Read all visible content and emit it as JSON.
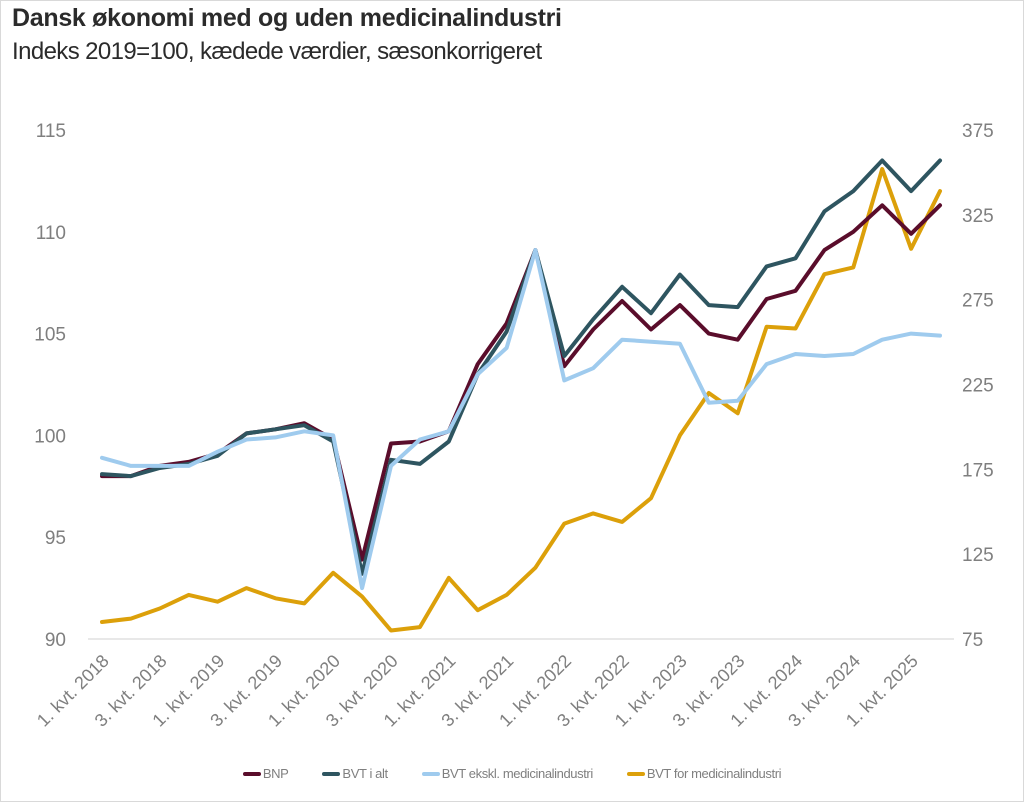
{
  "chart_data": {
    "type": "line",
    "title": "Dansk økonomi med og uden medicinalindustri",
    "subtitle": "Indeks 2019=100, kædede værdier, sæsonkorrigeret",
    "xlabel": "",
    "ylabel_left": "",
    "ylabel_right": "",
    "ylim_left": [
      90,
      115
    ],
    "ylim_right": [
      75,
      375
    ],
    "yticks_left": [
      "90",
      "95",
      "100",
      "105",
      "110",
      "115"
    ],
    "yticks_right": [
      "75",
      "125",
      "175",
      "225",
      "275",
      "325",
      "375"
    ],
    "x": [
      "1. kvt. 2018",
      "2. kvt. 2018",
      "3. kvt. 2018",
      "4. kvt. 2018",
      "1. kvt. 2019",
      "2. kvt. 2019",
      "3. kvt. 2019",
      "4. kvt. 2019",
      "1. kvt. 2020",
      "2. kvt. 2020",
      "3. kvt. 2020",
      "4. kvt. 2020",
      "1. kvt. 2021",
      "2. kvt. 2021",
      "3. kvt. 2021",
      "4. kvt. 2021",
      "1. kvt. 2022",
      "2. kvt. 2022",
      "3. kvt. 2022",
      "4. kvt. 2022",
      "1. kvt. 2023",
      "2. kvt. 2023",
      "3. kvt. 2023",
      "4. kvt. 2023",
      "1. kvt. 2024",
      "2. kvt. 2024",
      "3. kvt. 2024",
      "4. kvt. 2024",
      "1. kvt. 2025",
      "2. kvt. 2025"
    ],
    "xtick_labels": [
      "1. kvt. 2018",
      "3. kvt. 2018",
      "1. kvt. 2019",
      "3. kvt. 2019",
      "1. kvt. 2020",
      "3. kvt. 2020",
      "1. kvt. 2021",
      "3. kvt. 2021",
      "1. kvt. 2022",
      "3. kvt. 2022",
      "1. kvt. 2023",
      "3. kvt. 2023",
      "1. kvt. 2024",
      "3. kvt. 2024",
      "1. kvt. 2025"
    ],
    "grid": false,
    "legend_position": "bottom",
    "series": [
      {
        "name": "BNP",
        "axis": "left",
        "color": "#5a0d2b",
        "values": [
          98.0,
          98.0,
          98.5,
          98.7,
          99.1,
          100.1,
          100.3,
          100.6,
          99.8,
          93.9,
          99.6,
          99.7,
          100.2,
          103.5,
          105.5,
          109.1,
          103.4,
          105.2,
          106.6,
          105.2,
          106.4,
          105.0,
          104.7,
          106.7,
          107.1,
          109.1,
          110.0,
          111.3,
          109.9,
          111.3
        ]
      },
      {
        "name": "BVT i alt",
        "axis": "left",
        "color": "#2e5560",
        "values": [
          98.1,
          98.0,
          98.4,
          98.6,
          99.0,
          100.1,
          100.3,
          100.5,
          99.7,
          93.2,
          98.8,
          98.6,
          99.7,
          103.0,
          105.1,
          109.1,
          103.9,
          105.7,
          107.3,
          106.0,
          107.9,
          106.4,
          106.3,
          108.3,
          108.7,
          111.0,
          112.0,
          113.5,
          112.0,
          113.5
        ]
      },
      {
        "name": "BVT ekskl. medicinalindustri",
        "axis": "left",
        "color": "#9fcbee",
        "values": [
          98.9,
          98.5,
          98.5,
          98.5,
          99.2,
          99.8,
          99.9,
          100.2,
          100.0,
          92.5,
          98.5,
          99.8,
          100.2,
          103.0,
          104.3,
          109.1,
          102.7,
          103.3,
          104.7,
          104.6,
          104.5,
          101.6,
          101.7,
          103.5,
          104.0,
          103.9,
          104.0,
          104.7,
          105.0,
          104.9
        ]
      },
      {
        "name": "BVT for medicinalindustri",
        "axis": "right",
        "color": "#dca00a",
        "values": [
          85,
          87,
          93,
          101,
          97,
          105,
          99,
          96,
          114,
          100,
          80,
          82,
          111,
          92,
          101,
          117,
          143,
          149,
          144,
          158,
          195,
          220,
          208,
          259,
          258,
          290,
          294,
          352,
          305,
          339
        ]
      }
    ]
  }
}
